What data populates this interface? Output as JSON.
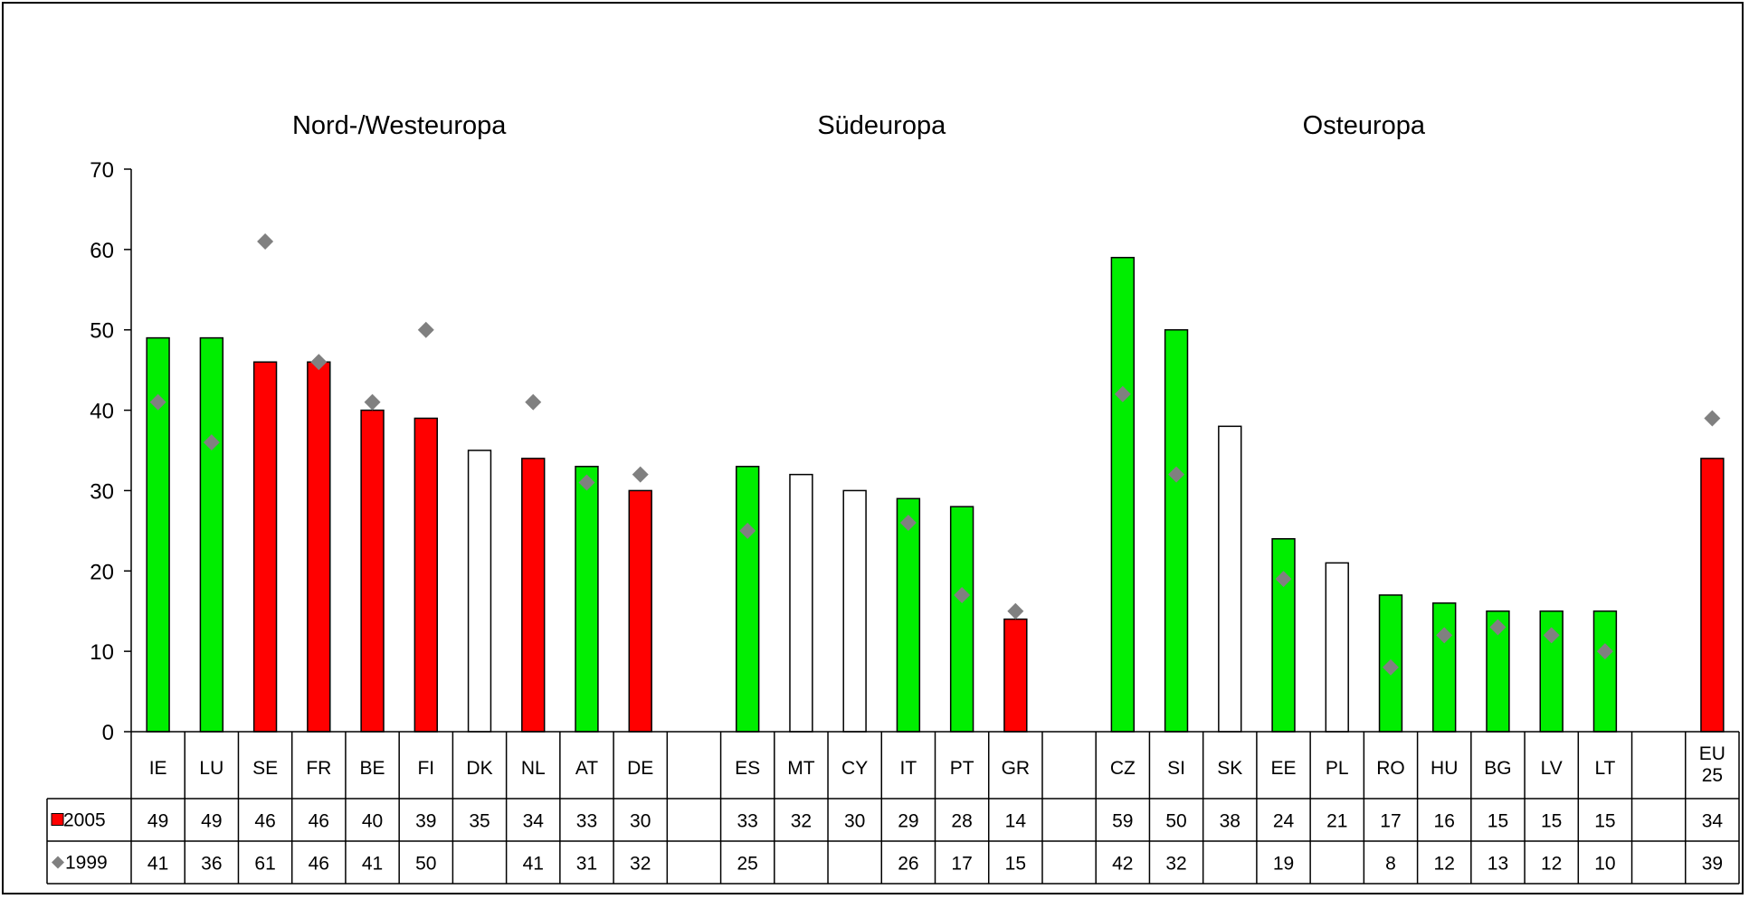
{
  "chart_data": {
    "type": "bar",
    "groups": [
      {
        "name": "Nord-/Westeuropa",
        "start": 0,
        "end": 9
      },
      {
        "name": "Südeuropa",
        "start": 11,
        "end": 16
      },
      {
        "name": "Osteuropa",
        "start": 18,
        "end": 27
      }
    ],
    "categories": [
      "IE",
      "LU",
      "SE",
      "FR",
      "BE",
      "FI",
      "DK",
      "NL",
      "AT",
      "DE",
      "",
      "ES",
      "MT",
      "CY",
      "IT",
      "PT",
      "GR",
      "",
      "CZ",
      "SI",
      "SK",
      "EE",
      "PL",
      "RO",
      "HU",
      "BG",
      "LV",
      "LT",
      "",
      "EU 25"
    ],
    "series": [
      {
        "name": "2005",
        "type": "bar",
        "values": [
          49,
          49,
          46,
          46,
          40,
          39,
          35,
          34,
          33,
          30,
          null,
          33,
          32,
          30,
          29,
          28,
          14,
          null,
          59,
          50,
          38,
          24,
          21,
          17,
          16,
          15,
          15,
          15,
          null,
          34
        ],
        "bar_status": [
          "green",
          "green",
          "red",
          "red",
          "red",
          "red",
          "white",
          "red",
          "green",
          "red",
          null,
          "green",
          "white",
          "white",
          "green",
          "green",
          "red",
          null,
          "green",
          "green",
          "white",
          "green",
          "white",
          "green",
          "green",
          "green",
          "green",
          "green",
          null,
          "red"
        ]
      },
      {
        "name": "1999",
        "type": "scatter",
        "marker": "diamond",
        "values": [
          41,
          36,
          61,
          46,
          41,
          50,
          null,
          41,
          31,
          32,
          null,
          25,
          null,
          null,
          26,
          17,
          15,
          null,
          42,
          32,
          null,
          19,
          null,
          8,
          12,
          13,
          12,
          10,
          null,
          39
        ]
      }
    ],
    "ylim": [
      0,
      70
    ],
    "yticks": [
      0,
      10,
      20,
      30,
      40,
      50,
      60,
      70
    ],
    "legend_position": "data-table-left",
    "colors": {
      "green": "#00ee00",
      "red": "#ff0000",
      "white": "#ffffff",
      "marker": "#808080"
    }
  }
}
